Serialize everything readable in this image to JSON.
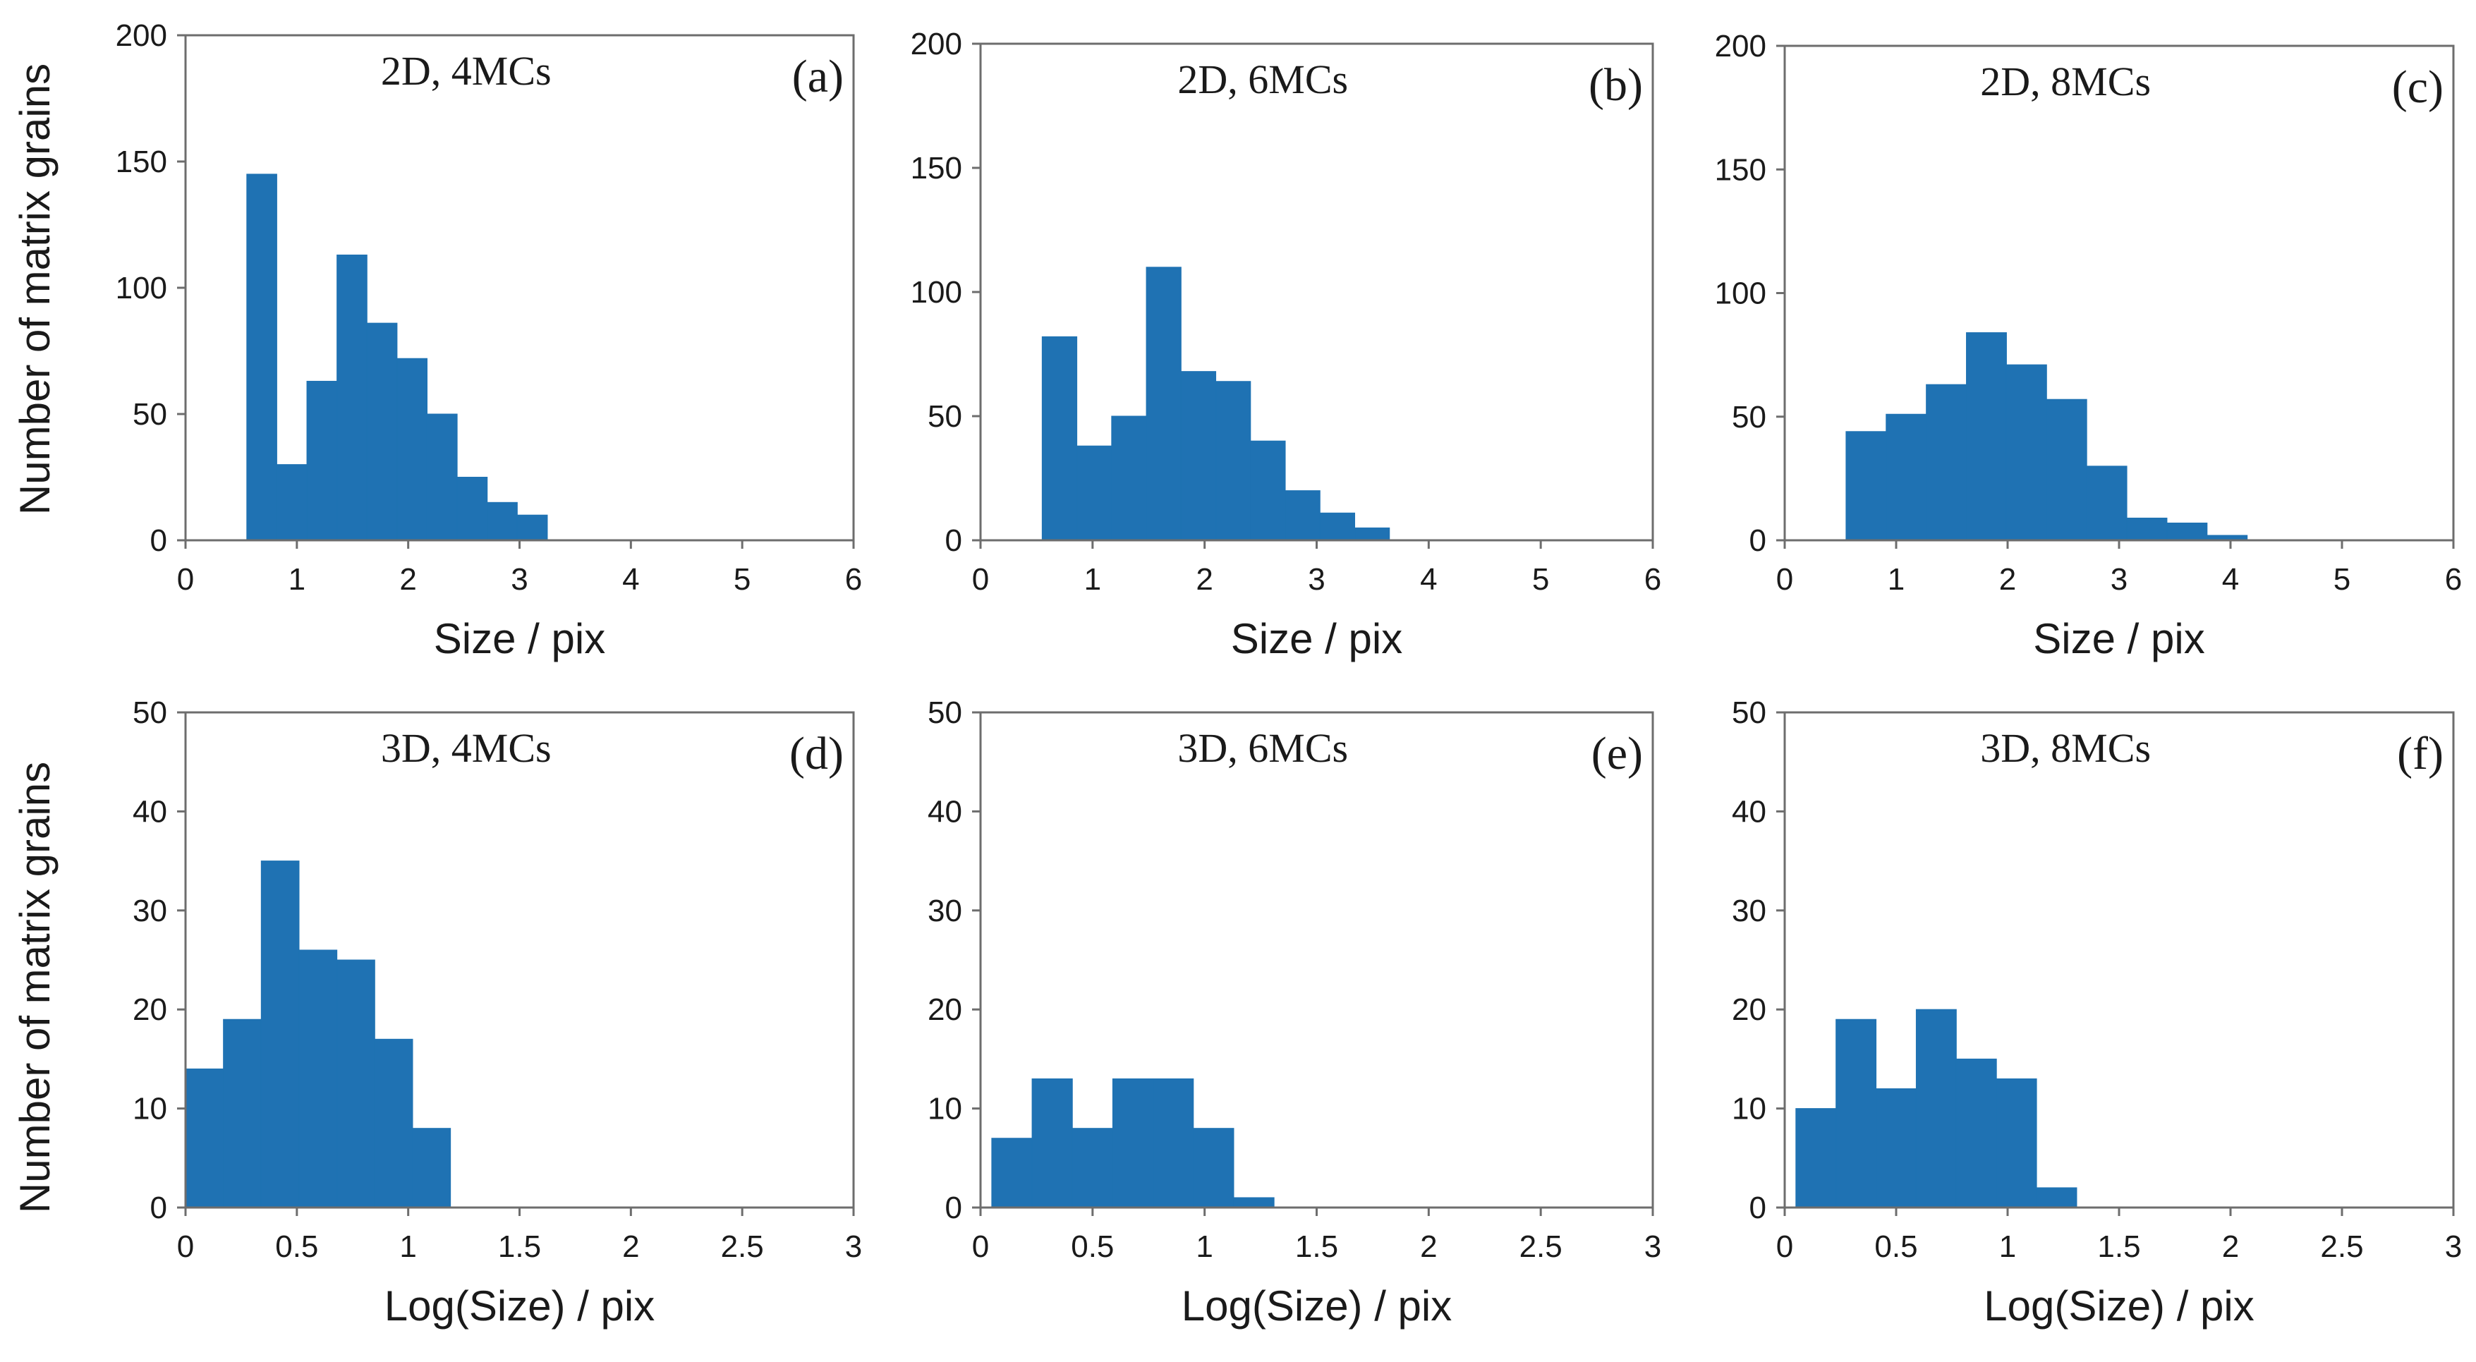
{
  "figure": {
    "bar_color": "#1f72b3",
    "ylabel_top": "Number of matrix grains",
    "ylabel_bottom": "Number of matrix grains"
  },
  "chart_data": [
    {
      "type": "bar",
      "title": "2D, 4MCs",
      "panel": "(a)",
      "xlabel": "Size / pix",
      "ylabel": "Number of matrix grains",
      "xlim": [
        0,
        6
      ],
      "ylim": [
        0,
        200
      ],
      "xticks": [
        "0",
        "1",
        "2",
        "3",
        "4",
        "5",
        "6"
      ],
      "yticks": [
        "0",
        "50",
        "100",
        "150",
        "200"
      ],
      "bin_start": 0.55,
      "bin_width": 0.27,
      "values": [
        145,
        30,
        63,
        113,
        86,
        72,
        50,
        25,
        15,
        10
      ]
    },
    {
      "type": "bar",
      "title": "2D, 6MCs",
      "panel": "(b)",
      "xlabel": "Size / pix",
      "ylabel": "",
      "xlim": [
        0,
        6
      ],
      "ylim": [
        0,
        200
      ],
      "xticks": [
        "0",
        "1",
        "2",
        "3",
        "4",
        "5",
        "6"
      ],
      "yticks": [
        "0",
        "50",
        "100",
        "150",
        "200"
      ],
      "bin_start": 0.55,
      "bin_width": 0.31,
      "values": [
        82,
        38,
        50,
        110,
        68,
        64,
        40,
        20,
        11,
        5
      ]
    },
    {
      "type": "bar",
      "title": "2D, 8MCs",
      "panel": "(c)",
      "xlabel": "Size / pix",
      "ylabel": "",
      "xlim": [
        0,
        6
      ],
      "ylim": [
        0,
        200
      ],
      "xticks": [
        "0",
        "1",
        "2",
        "3",
        "4",
        "5",
        "6"
      ],
      "yticks": [
        "0",
        "50",
        "100",
        "150",
        "200"
      ],
      "bin_start": 0.55,
      "bin_width": 0.36,
      "values": [
        44,
        51,
        63,
        84,
        71,
        57,
        30,
        9,
        7,
        2
      ]
    },
    {
      "type": "bar",
      "title": "3D, 4MCs",
      "panel": "(d)",
      "xlabel": "Log(Size) / pix",
      "ylabel": "Number of matrix grains",
      "xlim": [
        0,
        3
      ],
      "ylim": [
        0,
        50
      ],
      "xticks": [
        "0",
        "0.5",
        "1",
        "1.5",
        "2",
        "2.5",
        "3"
      ],
      "yticks": [
        "0",
        "10",
        "20",
        "30",
        "40",
        "50"
      ],
      "bin_start": 0,
      "bin_width": 0.17,
      "values": [
        14,
        19,
        35,
        26,
        25,
        17,
        8
      ]
    },
    {
      "type": "bar",
      "title": "3D, 6MCs",
      "panel": "(e)",
      "xlabel": "Log(Size) / pix",
      "ylabel": "",
      "xlim": [
        0,
        3
      ],
      "ylim": [
        0,
        50
      ],
      "xticks": [
        "0",
        "0.5",
        "1",
        "1.5",
        "2",
        "2.5",
        "3"
      ],
      "yticks": [
        "0",
        "10",
        "20",
        "30",
        "40",
        "50"
      ],
      "bin_start": 0.05,
      "bin_width": 0.18,
      "values": [
        7,
        13,
        8,
        13,
        13,
        8,
        1
      ]
    },
    {
      "type": "bar",
      "title": "3D, 8MCs",
      "panel": "(f)",
      "xlabel": "Log(Size) / pix",
      "ylabel": "",
      "xlim": [
        0,
        3
      ],
      "ylim": [
        0,
        50
      ],
      "xticks": [
        "0",
        "0.5",
        "1",
        "1.5",
        "2",
        "2.5",
        "3"
      ],
      "yticks": [
        "0",
        "10",
        "20",
        "30",
        "40",
        "50"
      ],
      "bin_start": 0.05,
      "bin_width": 0.18,
      "values": [
        10,
        19,
        12,
        20,
        15,
        13,
        2
      ]
    }
  ]
}
